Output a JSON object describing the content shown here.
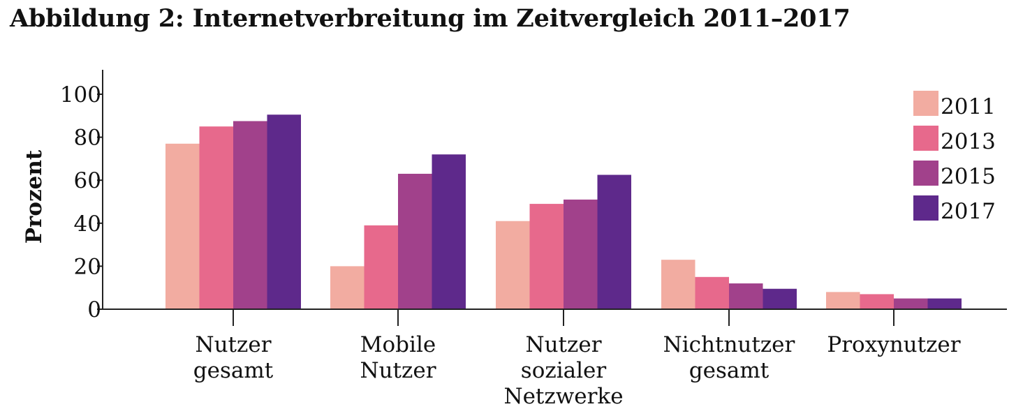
{
  "chart_data": {
    "type": "bar",
    "title": "Abbildung 2: Internetverbreitung im Zeitvergleich 2011–2017",
    "xlabel": "",
    "ylabel": "Prozent",
    "ylim": [
      0,
      110
    ],
    "yticks": [
      0,
      20,
      40,
      60,
      80,
      100
    ],
    "grid": false,
    "legend_position": "top-right",
    "categories": [
      [
        "Nutzer",
        "gesamt"
      ],
      [
        "Mobile",
        "Nutzer"
      ],
      [
        "Nutzer",
        "sozialer",
        "Netzwerke"
      ],
      [
        "Nichtnutzer",
        "gesamt"
      ],
      [
        "Proxynutzer"
      ]
    ],
    "series": [
      {
        "name": "2011",
        "color": "#f2aca1",
        "values": [
          77,
          20,
          41,
          23,
          8
        ]
      },
      {
        "name": "2013",
        "color": "#e7698c",
        "values": [
          85,
          39,
          49,
          15,
          7
        ]
      },
      {
        "name": "2015",
        "color": "#a1418b",
        "values": [
          87.5,
          63,
          51,
          12,
          5
        ]
      },
      {
        "name": "2017",
        "color": "#5e298b",
        "values": [
          90.5,
          72,
          62.5,
          9.5,
          5
        ]
      }
    ]
  }
}
